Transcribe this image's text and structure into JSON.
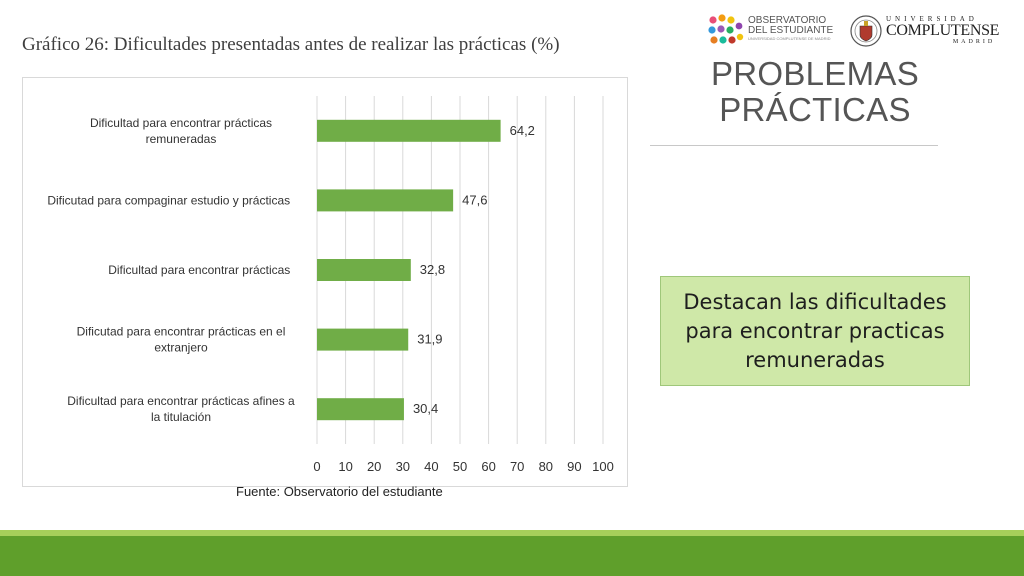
{
  "chart_title": "Gráfico 26: Dificultades presentadas antes de realizar las prácticas (%)",
  "source": "Fuente: Observatorio del estudiante",
  "slide_title": "PROBLEMAS PRÁCTICAS",
  "callout": "Destacan las dificultades para encontrar practicas remuneradas",
  "logos": {
    "observatorio_line1": "OBSERVATORIO",
    "observatorio_line2": "DEL ESTUDIANTE",
    "observatorio_line3": "UNIVERSIDAD COMPLUTENSE DE MADRID",
    "ucm_top": "UNIVERSIDAD",
    "ucm_main": "COMPLUTENSE",
    "ucm_bottom": "MADRID"
  },
  "colors": {
    "bar": "#70ad47",
    "grid": "#d9d9d9",
    "band_light": "#a6cf5a",
    "band_dark": "#5f9f2b",
    "callout_bg": "#cfe8a8"
  },
  "chart_data": {
    "type": "bar",
    "orientation": "horizontal",
    "categories": [
      "Dificultad para encontrar prácticas remuneradas",
      "Dificutad para compaginar estudio y prácticas",
      "Dificultad para encontrar prácticas",
      "Dificutad para encontrar prácticas en el extranjero",
      "Dificultad para encontrar prácticas afines a la titulación"
    ],
    "values": [
      64.2,
      47.6,
      32.8,
      31.9,
      30.4
    ],
    "value_labels": [
      "64,2",
      "47,6",
      "32,8",
      "31,9",
      "30,4"
    ],
    "xlim": [
      0,
      100
    ],
    "xticks": [
      0,
      10,
      20,
      30,
      40,
      50,
      60,
      70,
      80,
      90,
      100
    ],
    "grid": "vertical",
    "legend": "none"
  }
}
